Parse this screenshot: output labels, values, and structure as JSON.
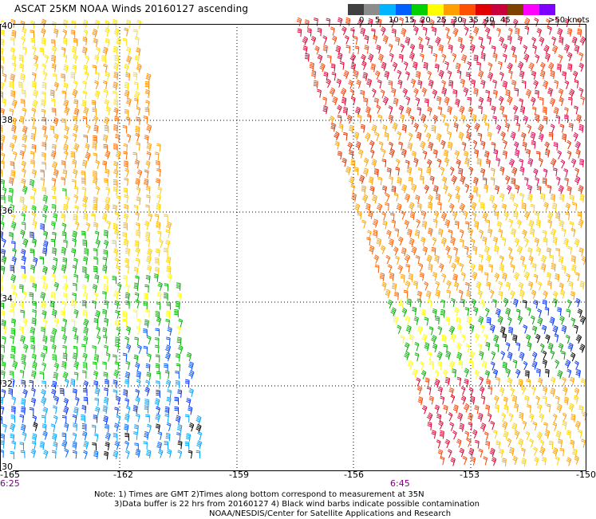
{
  "title": "ASCAT 25KM NOAA Winds 20160127 ascending",
  "scale": {
    "labels": [
      "0",
      "5",
      "10",
      "15",
      "20",
      "25",
      "30",
      "35",
      "40",
      "45"
    ],
    "unit_label": ">50 knots",
    "colors": [
      "#404040",
      "#8c8c8c",
      "#00b4ff",
      "#0060ff",
      "#00d000",
      "#ffff00",
      "#ffa000",
      "#ff5000",
      "#e00000",
      "#c8003c",
      "#804000",
      "#ff00ff",
      "#8000ff"
    ]
  },
  "lon_labels": [
    "-165",
    "-162",
    "-159",
    "-156",
    "-153",
    "-150"
  ],
  "lat_labels": [
    "40",
    "38",
    "36",
    "34",
    "32",
    "30"
  ],
  "times": [
    "6:25",
    "6:45"
  ],
  "notes": [
    "Note: 1) Times are GMT 2)Times along bottom correspond to measurement at 35N",
    "3)Data buffer is 22 hrs from 20160127 4) Black wind barbs indicate possible contamination",
    "NOAA/NESDIS/Center for Satellite Applications and Research"
  ]
}
